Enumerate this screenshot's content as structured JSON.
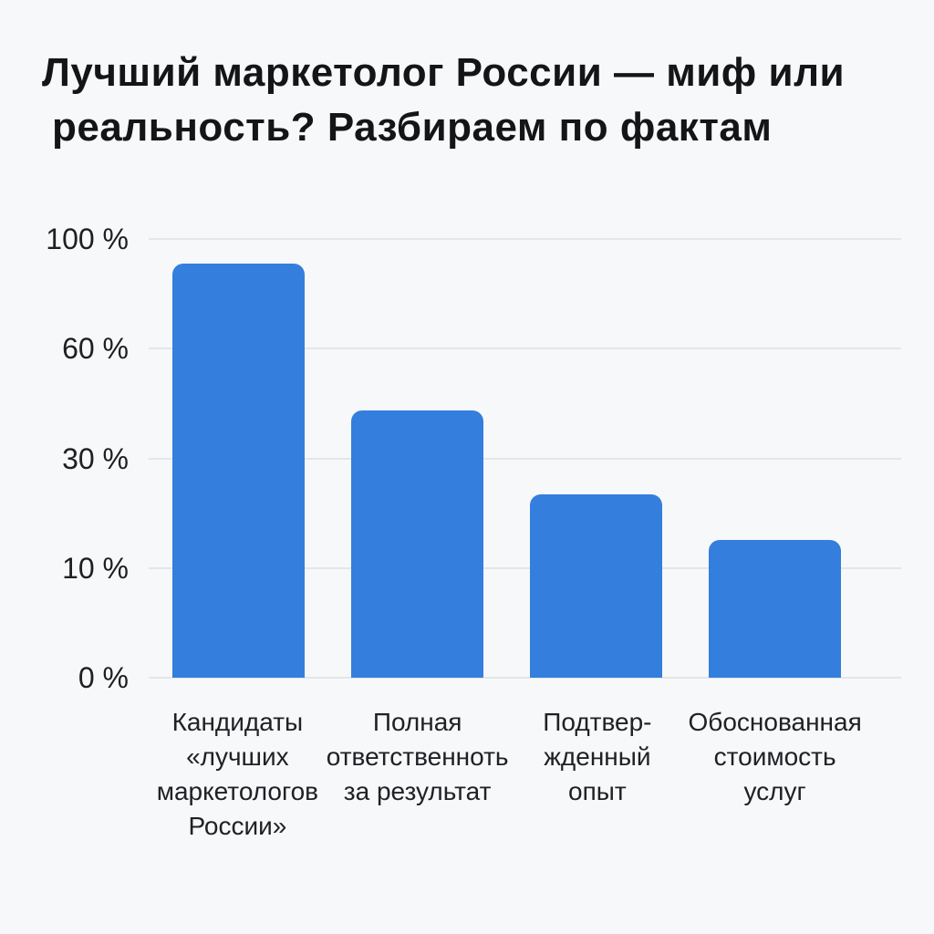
{
  "title": {
    "line1": "Лучший маркетолог России — миф или",
    "line2": "реальность? Разбираем по фактам",
    "full": "Лучший маркетолог России — миф или реальность? Разбираем по фактам"
  },
  "colors": {
    "background": "#F7F8FA",
    "bar": "#347EDD",
    "gridline": "#E4E6E9",
    "title_text": "#141517",
    "axis_text": "#1E1F21",
    "label_text": "#202124"
  },
  "chart_data": {
    "type": "bar",
    "title": "Лучший маркетолог России — миф или реальность? Разбираем по фактам",
    "categories": [
      "Кандидаты «лучших маркетологов России»",
      "Полная ответственноть за результат",
      "Подтвер-жденный опыт",
      "Обоснованная стоимость услуг"
    ],
    "category_lines": [
      [
        "Кандидаты",
        "«лучших",
        "маркетологов",
        "России»"
      ],
      [
        "Полная",
        "ответственноть",
        "за результат"
      ],
      [
        "Подтвер-",
        "жденный",
        "опыт"
      ],
      [
        "Обоснованная",
        "стоимость",
        "услуг"
      ]
    ],
    "values": [
      91,
      43,
      23,
      15
    ],
    "unit": "%",
    "xlabel": "",
    "ylabel": "",
    "y_tick_labels": [
      "100 %",
      "60 %",
      "30 %",
      "10 %",
      "0 %"
    ],
    "y_tick_values": [
      100,
      60,
      30,
      10,
      0
    ],
    "ylim": [
      0,
      100
    ],
    "axis_scale": "non-linear: ticks 0/10/30/60/100 are evenly spaced",
    "grid": true,
    "legend": false,
    "bar_display_heights_pct": [
      94.4,
      60.9,
      41.8,
      31.4
    ]
  }
}
